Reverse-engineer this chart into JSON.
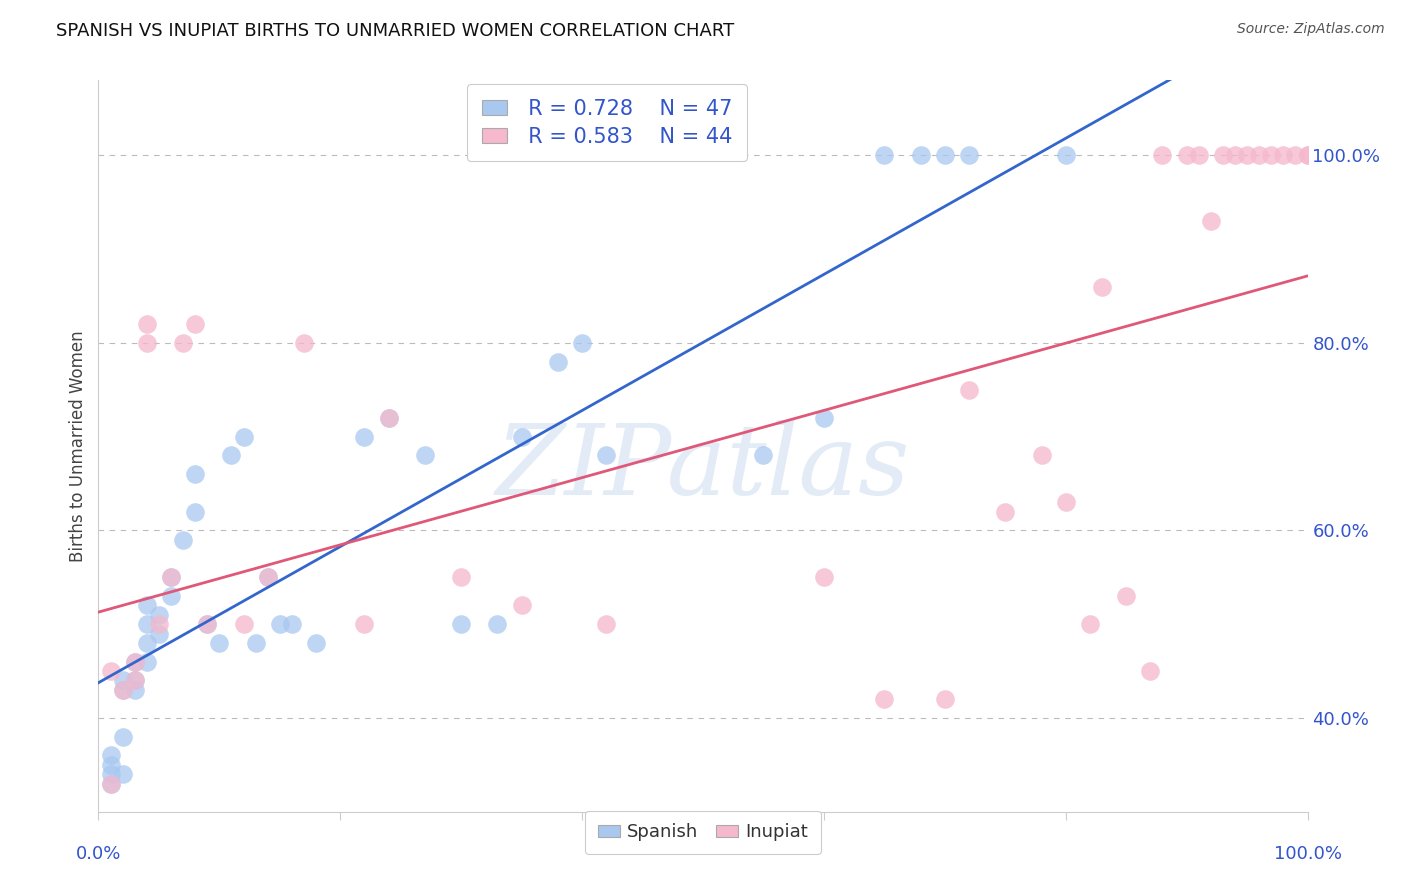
{
  "title": "SPANISH VS INUPIAT BIRTHS TO UNMARRIED WOMEN CORRELATION CHART",
  "source": "Source: ZipAtlas.com",
  "ylabel": "Births to Unmarried Women",
  "ytick_labels": [
    "100.0%",
    "80.0%",
    "60.0%",
    "40.0%"
  ],
  "ytick_positions": [
    1.0,
    0.8,
    0.6,
    0.4
  ],
  "xlim": [
    0.0,
    1.0
  ],
  "ylim": [
    0.3,
    1.08
  ],
  "background_color": "#ffffff",
  "grid_color": "#bbbbbb",
  "legend_r_blue": "R = 0.728",
  "legend_n_blue": "N = 47",
  "legend_r_pink": "R = 0.583",
  "legend_n_pink": "N = 44",
  "blue_color": "#a8c8f0",
  "pink_color": "#f5b8cc",
  "line_blue_color": "#3366cc",
  "line_pink_color": "#e05878",
  "marker_size": 180,
  "spanish_x": [
    0.01,
    0.01,
    0.01,
    0.01,
    0.02,
    0.02,
    0.02,
    0.02,
    0.03,
    0.03,
    0.03,
    0.04,
    0.04,
    0.04,
    0.04,
    0.05,
    0.05,
    0.06,
    0.06,
    0.07,
    0.08,
    0.08,
    0.09,
    0.1,
    0.11,
    0.12,
    0.13,
    0.14,
    0.15,
    0.16,
    0.18,
    0.22,
    0.24,
    0.27,
    0.3,
    0.33,
    0.35,
    0.38,
    0.4,
    0.42,
    0.55,
    0.6,
    0.65,
    0.68,
    0.7,
    0.72,
    0.8
  ],
  "spanish_y": [
    0.33,
    0.34,
    0.35,
    0.36,
    0.34,
    0.38,
    0.43,
    0.44,
    0.43,
    0.44,
    0.46,
    0.46,
    0.48,
    0.5,
    0.52,
    0.49,
    0.51,
    0.53,
    0.55,
    0.59,
    0.62,
    0.66,
    0.5,
    0.48,
    0.68,
    0.7,
    0.48,
    0.55,
    0.5,
    0.5,
    0.48,
    0.7,
    0.72,
    0.68,
    0.5,
    0.5,
    0.7,
    0.78,
    0.8,
    0.68,
    0.68,
    0.72,
    1.0,
    1.0,
    1.0,
    1.0,
    1.0
  ],
  "inupiat_x": [
    0.01,
    0.01,
    0.02,
    0.03,
    0.03,
    0.04,
    0.04,
    0.05,
    0.06,
    0.07,
    0.08,
    0.09,
    0.12,
    0.14,
    0.17,
    0.22,
    0.24,
    0.3,
    0.35,
    0.42,
    0.6,
    0.65,
    0.7,
    0.72,
    0.75,
    0.78,
    0.8,
    0.82,
    0.83,
    0.85,
    0.87,
    0.88,
    0.9,
    0.91,
    0.92,
    0.93,
    0.94,
    0.95,
    0.96,
    0.97,
    0.98,
    0.99,
    1.0,
    1.0
  ],
  "inupiat_y": [
    0.33,
    0.45,
    0.43,
    0.44,
    0.46,
    0.8,
    0.82,
    0.5,
    0.55,
    0.8,
    0.82,
    0.5,
    0.5,
    0.55,
    0.8,
    0.5,
    0.72,
    0.55,
    0.52,
    0.5,
    0.55,
    0.42,
    0.42,
    0.75,
    0.62,
    0.68,
    0.63,
    0.5,
    0.86,
    0.53,
    0.45,
    1.0,
    1.0,
    1.0,
    0.93,
    1.0,
    1.0,
    1.0,
    1.0,
    1.0,
    1.0,
    1.0,
    1.0,
    1.0
  ]
}
